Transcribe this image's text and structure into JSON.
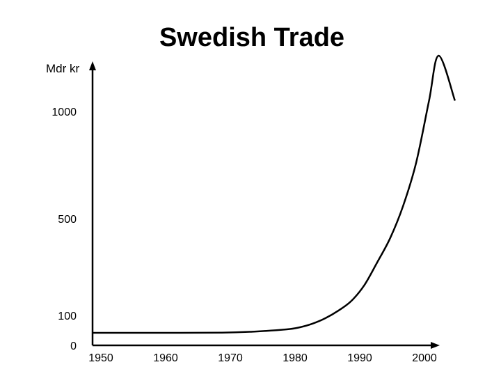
{
  "chart_data": {
    "type": "line",
    "title": "Swedish Trade",
    "ylabel": "Mdr kr",
    "xlabel": "",
    "x_ticks": [
      "1950",
      "1960",
      "1970",
      "1980",
      "1990",
      "2000"
    ],
    "y_ticks": [
      "0",
      "100",
      "500",
      "1000"
    ],
    "grid": false,
    "legend": "none",
    "line_color": "#000000",
    "series": [
      {
        "x": [
          1950,
          1960,
          1970,
          1975,
          1980,
          1982,
          1984,
          1986,
          1988,
          1990,
          1992,
          1994,
          1996,
          1998,
          2000,
          2002,
          2003.5,
          2006
        ],
        "y": [
          5,
          5,
          6,
          12,
          24,
          35,
          55,
          85,
          120,
          160,
          225,
          320,
          420,
          560,
          760,
          1060,
          1310,
          1060
        ]
      }
    ]
  }
}
